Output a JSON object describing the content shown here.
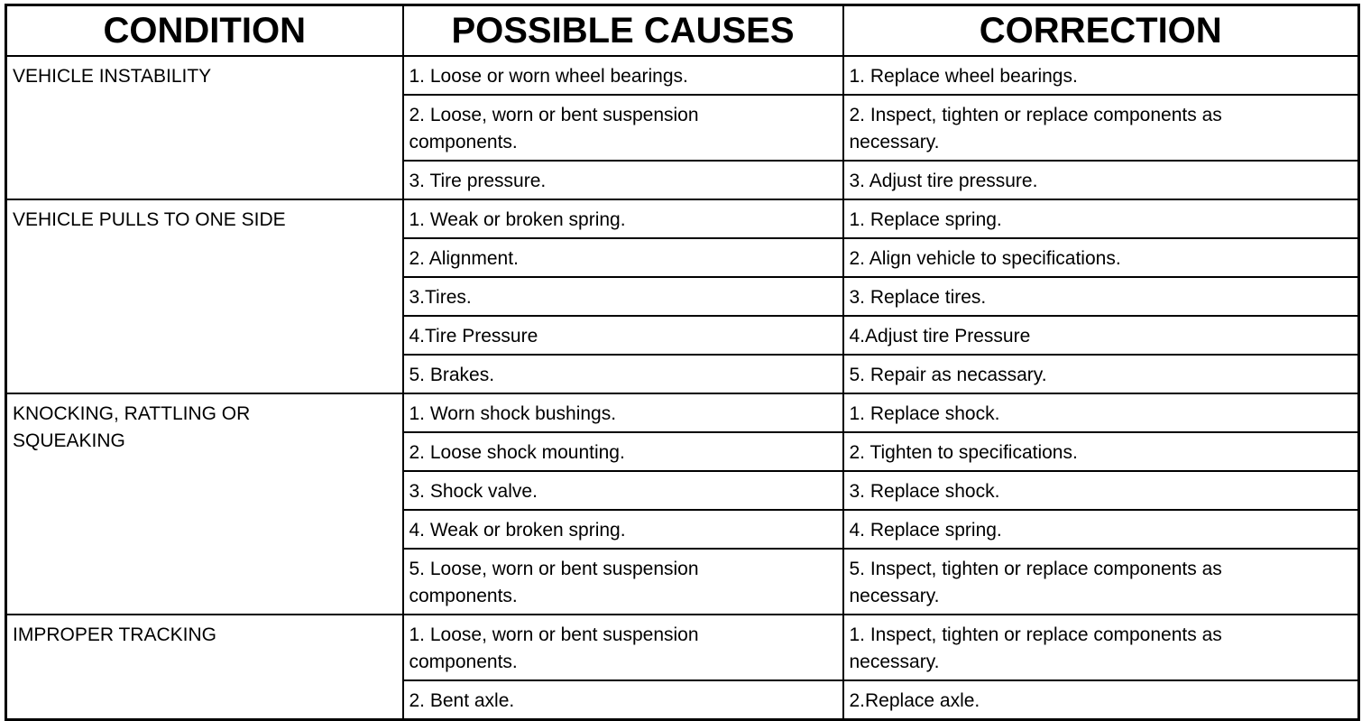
{
  "headers": [
    "CONDITION",
    "POSSIBLE CAUSES",
    "CORRECTION"
  ],
  "groups": [
    {
      "condition": "VEHICLE INSTABILITY",
      "rows": [
        {
          "cause": "1. Loose or worn wheel bearings.",
          "correction": "1. Replace wheel bearings."
        },
        {
          "cause": "2. Loose, worn or bent suspension components.",
          "correction": "2. Inspect, tighten or replace components as necessary."
        },
        {
          "cause": "3. Tire pressure.",
          "correction": "3. Adjust tire pressure."
        }
      ]
    },
    {
      "condition": "VEHICLE PULLS TO ONE SIDE",
      "rows": [
        {
          "cause": "1. Weak or broken spring.",
          "correction": "1. Replace spring."
        },
        {
          "cause": "2. Alignment.",
          "correction": "2. Align vehicle to specifications."
        },
        {
          "cause": "3.Tires.",
          "correction": "3. Replace tires."
        },
        {
          "cause": "4.Tire Pressure",
          "correction": "4.Adjust tire Pressure"
        },
        {
          "cause": "5. Brakes.",
          "correction": "5. Repair as necassary."
        }
      ]
    },
    {
      "condition": "KNOCKING, RATTLING OR SQUEAKING",
      "rows": [
        {
          "cause": "1. Worn shock bushings.",
          "correction": "1. Replace shock."
        },
        {
          "cause": "2. Loose shock mounting.",
          "correction": "2. Tighten to specifications."
        },
        {
          "cause": "3. Shock valve.",
          "correction": "3. Replace shock."
        },
        {
          "cause": "4. Weak or broken spring.",
          "correction": "4. Replace spring."
        },
        {
          "cause": "5. Loose, worn or bent suspension components.",
          "correction": "5. Inspect, tighten or replace components as necessary."
        }
      ]
    },
    {
      "condition": "IMPROPER TRACKING",
      "rows": [
        {
          "cause": "1. Loose, worn or bent suspension components.",
          "correction": "1. Inspect, tighten or replace components as necessary."
        },
        {
          "cause": "2. Bent axle.",
          "correction": "2.Replace axle."
        }
      ]
    }
  ]
}
